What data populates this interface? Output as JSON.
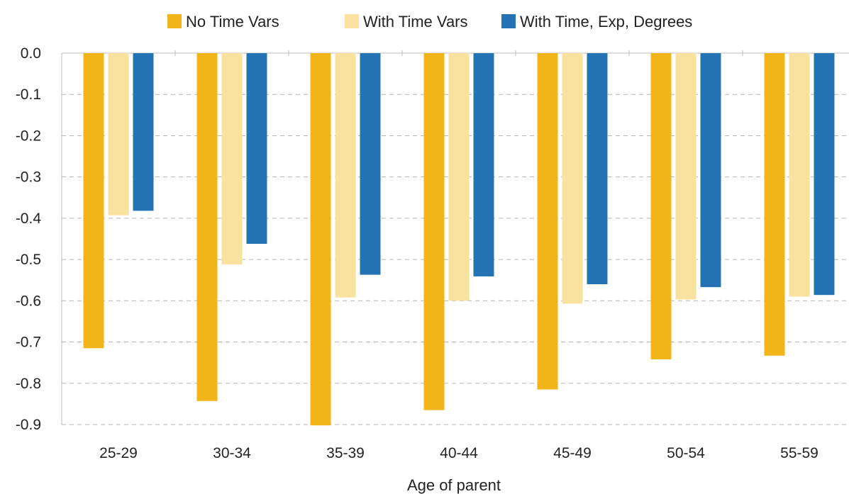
{
  "chart_data": {
    "type": "bar",
    "categories": [
      "25-29",
      "30-34",
      "35-39",
      "40-44",
      "45-49",
      "50-54",
      "55-59"
    ],
    "series": [
      {
        "name": "No Time Vars",
        "color": "#F2B519",
        "values": [
          -0.715,
          -0.843,
          -0.902,
          -0.865,
          -0.815,
          -0.742,
          -0.733
        ]
      },
      {
        "name": "With Time Vars",
        "color": "#F9E1A0",
        "values": [
          -0.393,
          -0.512,
          -0.592,
          -0.6,
          -0.607,
          -0.597,
          -0.59
        ]
      },
      {
        "name": "With Time, Exp, Degrees",
        "color": "#2373B5",
        "values": [
          -0.382,
          -0.462,
          -0.537,
          -0.541,
          -0.56,
          -0.567,
          -0.586
        ]
      }
    ],
    "xlabel": "Age of parent",
    "ylabel": "",
    "ylim": [
      -0.9,
      0.0
    ],
    "yticks": [
      "0.0",
      "-0.1",
      "-0.2",
      "-0.3",
      "-0.4",
      "-0.5",
      "-0.6",
      "-0.7",
      "-0.8",
      "-0.9"
    ],
    "grid": true,
    "legend_position": "top-center"
  }
}
